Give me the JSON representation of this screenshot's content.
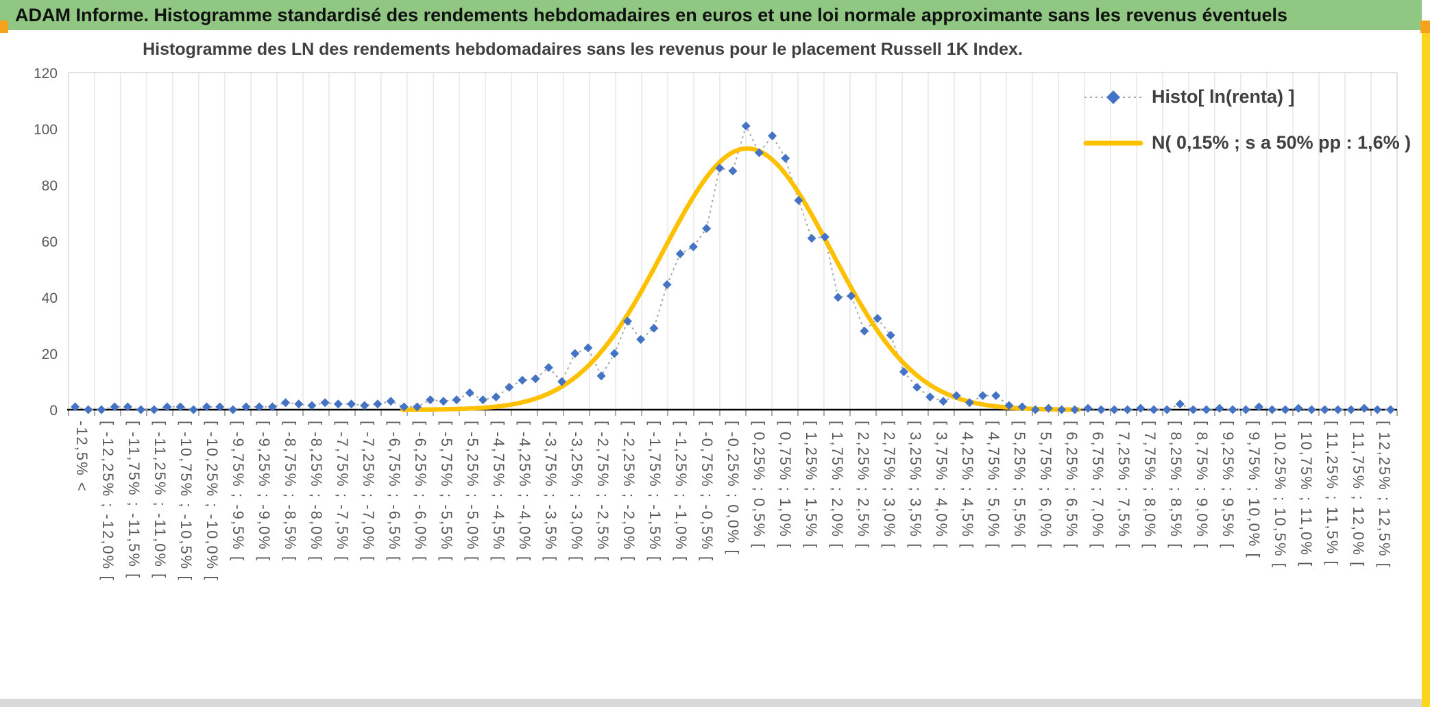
{
  "window": {
    "header_title": "ADAM Informe. Histogramme standardisé des rendements hebdomadaires en euros et une loi normale approximante sans les revenus éventuels"
  },
  "chart": {
    "title": "Histogramme des LN des rendements hebdomadaires sans les revenus pour le placement Russell 1K Index.",
    "legend": [
      {
        "label": "Histo[ ln(renta) ]"
      },
      {
        "label": "N( 0,15% ; s a 50% pp : 1,6% )"
      }
    ]
  },
  "colors": {
    "header_green": "#90c883",
    "accent_orange": "#f5a31d",
    "edge_yellow": "#ffd41c",
    "bottom_gray": "#d9d9d9",
    "title_text": "#404040"
  },
  "chart_data": {
    "type": "line",
    "title": "Histogramme des LN des rendements hebdomadaires sans les revenus pour le placement Russell 1K Index.",
    "ylim": [
      0,
      120
    ],
    "y_ticks": [
      0,
      20,
      40,
      60,
      80,
      100,
      120
    ],
    "grid": "vertical-only",
    "legend_position": "top-right-inside",
    "bin_width_pct": 0.25,
    "tick_label_step_bins": 2,
    "tick_labels": [
      "-12,5% <",
      "[ -12,25% ; -12,0% [",
      "[ -11,75% ; -11,5% [",
      "[ -11,25% ; -11,0% [",
      "[ -10,75% ; -10,5% [",
      "[ -10,25% ; -10,0% [",
      "[ -9,75% ; -9,5% [",
      "[ -9,25% ; -9,0% [",
      "[ -8,75% ; -8,5% [",
      "[ -8,25% ; -8,0% [",
      "[ -7,75% ; -7,5% [",
      "[ -7,25% ; -7,0% [",
      "[ -6,75% ; -6,5% [",
      "[ -6,25% ; -6,0% [",
      "[ -5,75% ; -5,5% [",
      "[ -5,25% ; -5,0% [",
      "[ -4,75% ; -4,5% [",
      "[ -4,25% ; -4,0% [",
      "[ -3,75% ; -3,5% [",
      "[ -3,25% ; -3,0% [",
      "[ -2,75% ; -2,5% [",
      "[ -2,25% ; -2,0% [",
      "[ -1,75% ; -1,5% [",
      "[ -1,25% ; -1,0% [",
      "[ -0,75% ; -0,5% [",
      "[ -0,25% ; 0,0% [",
      "[ 0,25% ; 0,5% [",
      "[ 0,75% ; 1,0% [",
      "[ 1,25% ; 1,5% [",
      "[ 1,75% ; 2,0% [",
      "[ 2,25% ; 2,5% [",
      "[ 2,75% ; 3,0% [",
      "[ 3,25% ; 3,5% [",
      "[ 3,75% ; 4,0% [",
      "[ 4,25% ; 4,5% [",
      "[ 4,75% ; 5,0% [",
      "[ 5,25% ; 5,5% [",
      "[ 5,75% ; 6,0% [",
      "[ 6,25% ; 6,5% [",
      "[ 6,75% ; 7,0% [",
      "[ 7,25% ; 7,5% [",
      "[ 7,75% ; 8,0% [",
      "[ 8,25% ; 8,5% [",
      "[ 8,75% ; 9,0% [",
      "[ 9,25% ; 9,5% [",
      "[ 9,75% ; 10,0% [",
      "[ 10,25% ; 10,5% [",
      "[ 10,75% ; 11,0% [",
      "[ 11,25% ; 11,5% [",
      "[ 11,75% ; 12,0% [",
      "[ 12,25% ; 12,5% ["
    ],
    "series": [
      {
        "name": "Histo[ ln(renta) ]",
        "type": "scatter-dotted-line",
        "marker": "diamond",
        "values": [
          1,
          0,
          0,
          1,
          1,
          0,
          0,
          1,
          1,
          0,
          1,
          1,
          0,
          1,
          1,
          1,
          2.5,
          2,
          1.5,
          2.5,
          2,
          2,
          1.5,
          2,
          3,
          1,
          1,
          3.5,
          3,
          3.5,
          6,
          3.5,
          4.5,
          8,
          10.5,
          11,
          15,
          10,
          20,
          22,
          12,
          20,
          31.5,
          25,
          29,
          44.5,
          55.5,
          58,
          64.5,
          86,
          85,
          101,
          91.5,
          97.5,
          89.5,
          74.5,
          61,
          61.5,
          40,
          40.5,
          28,
          32.5,
          26.5,
          13.5,
          8,
          4.5,
          3,
          5,
          2.5,
          5,
          5,
          1.5,
          1,
          0,
          0.5,
          0,
          0,
          0.5,
          0,
          0,
          0,
          0.5,
          0,
          0,
          2,
          0,
          0,
          0.5,
          0,
          0,
          1,
          0,
          0,
          0.5,
          0,
          0,
          0,
          0,
          0.5,
          0,
          0
        ]
      },
      {
        "name": "N( 0,15% ; s a 50% pp : 1,6% )",
        "type": "smooth-curve",
        "normal_mean_pct": 0.15,
        "normal_sigma_pct": 1.6,
        "peak_value": 93
      }
    ],
    "colors": {
      "marker": "#4472c4",
      "connector": "#a6a6a6",
      "normal": "#ffc000",
      "gridline": "#d9d9d9",
      "axis": "#000000",
      "axis_text": "#595959"
    }
  }
}
